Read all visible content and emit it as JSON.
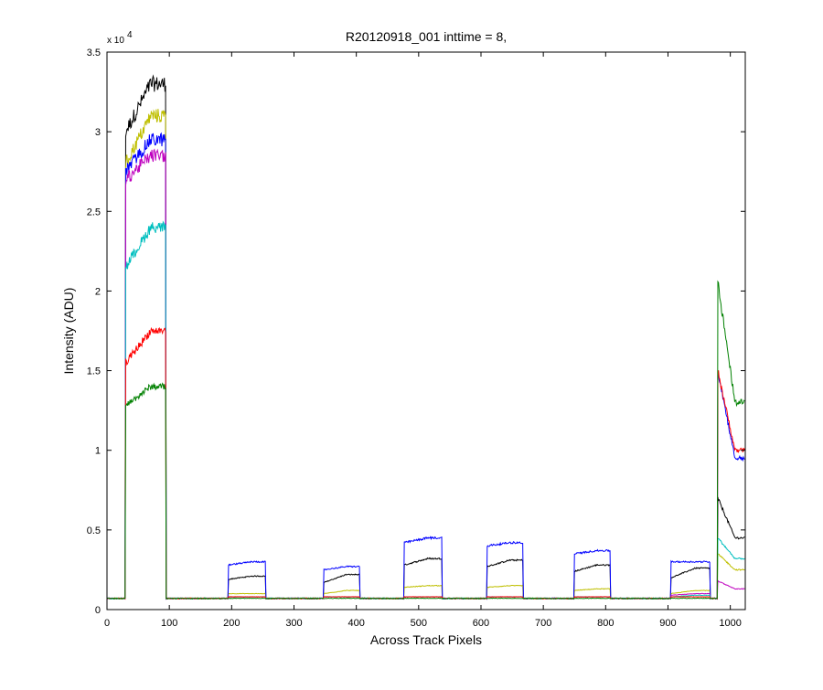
{
  "chart_data": {
    "type": "line",
    "title": "R20120918_001 inttime = 8,",
    "xlabel": "Across Track Pixels",
    "ylabel": "Intensity (ADU)",
    "y_multiplier_base": "x 10",
    "y_multiplier_exponent": "4",
    "xlim": [
      0,
      1024
    ],
    "ylim": [
      0,
      3.5
    ],
    "y_scale_factor": 10000,
    "grid": false,
    "x_ticks": [
      0,
      100,
      200,
      300,
      400,
      500,
      600,
      700,
      800,
      900,
      1000
    ],
    "x_tick_labels": [
      "0",
      "100",
      "200",
      "300",
      "400",
      "500",
      "600",
      "700",
      "800",
      "900",
      "1000"
    ],
    "y_ticks": [
      0,
      0.5,
      1,
      1.5,
      2,
      2.5,
      3,
      3.5
    ],
    "y_tick_labels": [
      "0",
      "0.5",
      "1",
      "1.5",
      "2",
      "2.5",
      "3",
      "3.5"
    ],
    "baseline": 0.07,
    "noise_fraction": 0.015,
    "segments": [
      {
        "x0": 30,
        "x1": 94
      },
      {
        "x0": 195,
        "x1": 254
      },
      {
        "x0": 348,
        "x1": 405
      },
      {
        "x0": 477,
        "x1": 537
      },
      {
        "x0": 610,
        "x1": 667
      },
      {
        "x0": 750,
        "x1": 807
      },
      {
        "x0": 905,
        "x1": 967
      },
      {
        "x0": 980,
        "x1": 1024
      }
    ],
    "series": [
      {
        "color": "#000000",
        "levels": [
          [
            3.0,
            3.3
          ],
          [
            0.19,
            0.21
          ],
          [
            0.17,
            0.22
          ],
          [
            0.28,
            0.32
          ],
          [
            0.27,
            0.31
          ],
          [
            0.24,
            0.28
          ],
          [
            0.2,
            0.26
          ],
          [
            0.7,
            0.45
          ]
        ]
      },
      {
        "color": "#bfbf00",
        "levels": [
          [
            2.8,
            3.1
          ],
          [
            0.1,
            0.1
          ],
          [
            0.1,
            0.12
          ],
          [
            0.14,
            0.15
          ],
          [
            0.14,
            0.15
          ],
          [
            0.12,
            0.13
          ],
          [
            0.1,
            0.12
          ],
          [
            0.35,
            0.25
          ]
        ]
      },
      {
        "color": "#0000ff",
        "levels": [
          [
            2.75,
            2.95
          ],
          [
            0.28,
            0.3
          ],
          [
            0.25,
            0.27
          ],
          [
            0.42,
            0.45
          ],
          [
            0.4,
            0.42
          ],
          [
            0.35,
            0.37
          ],
          [
            0.3,
            0.3
          ],
          [
            1.5,
            0.95
          ]
        ]
      },
      {
        "color": "#bf00bf",
        "levels": [
          [
            2.7,
            2.85
          ],
          [
            0.08,
            0.08
          ],
          [
            0.08,
            0.08
          ],
          [
            0.08,
            0.08
          ],
          [
            0.08,
            0.08
          ],
          [
            0.08,
            0.08
          ],
          [
            0.09,
            0.1
          ],
          [
            0.18,
            0.13
          ]
        ]
      },
      {
        "color": "#00bfbf",
        "levels": [
          [
            2.15,
            2.4
          ],
          [
            0.08,
            0.08
          ],
          [
            0.08,
            0.08
          ],
          [
            0.08,
            0.08
          ],
          [
            0.08,
            0.08
          ],
          [
            0.08,
            0.08
          ],
          [
            0.08,
            0.09
          ],
          [
            0.45,
            0.32
          ]
        ]
      },
      {
        "color": "#ff0000",
        "levels": [
          [
            1.55,
            1.75
          ],
          [
            0.08,
            0.08
          ],
          [
            0.08,
            0.08
          ],
          [
            0.08,
            0.08
          ],
          [
            0.08,
            0.08
          ],
          [
            0.08,
            0.08
          ],
          [
            0.08,
            0.08
          ],
          [
            1.5,
            1.0
          ]
        ]
      },
      {
        "color": "#008000",
        "levels": [
          [
            1.28,
            1.4
          ],
          [
            0.07,
            0.07
          ],
          [
            0.07,
            0.07
          ],
          [
            0.07,
            0.07
          ],
          [
            0.07,
            0.07
          ],
          [
            0.07,
            0.07
          ],
          [
            0.07,
            0.07
          ],
          [
            2.05,
            1.3
          ]
        ]
      }
    ]
  }
}
